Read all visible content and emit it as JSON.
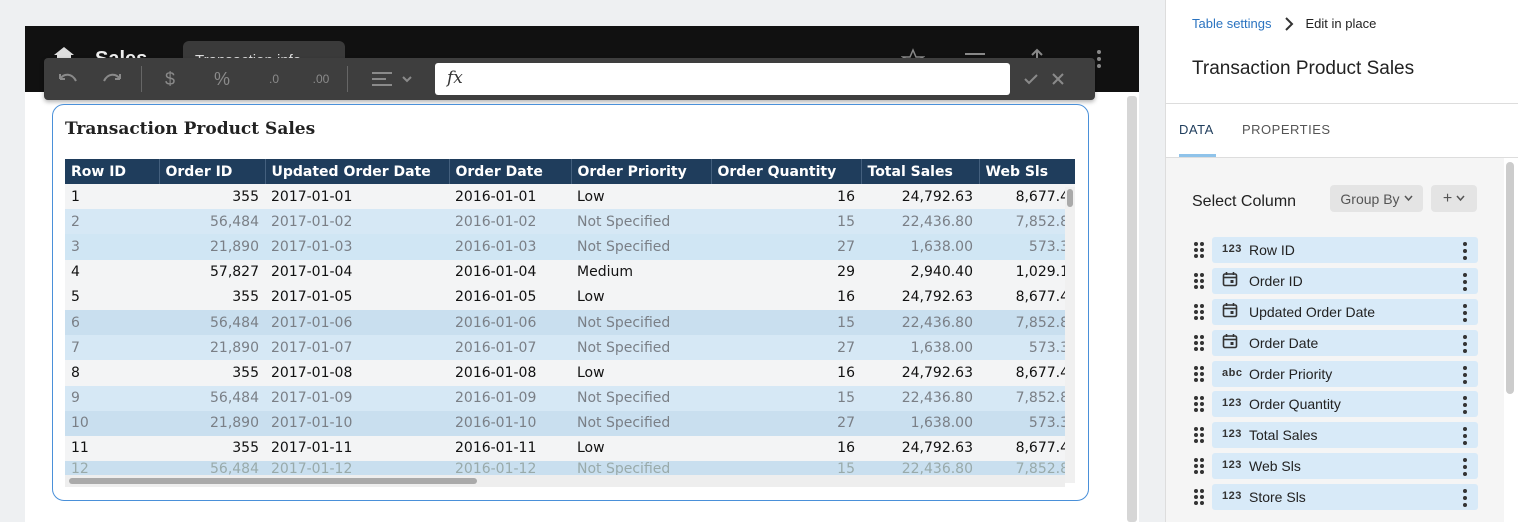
{
  "app": {
    "title": "Sales",
    "page_tab": "Transaction info"
  },
  "toolbar": {
    "undo_icon": "undo-icon",
    "redo_icon": "redo-icon",
    "currency_label": "$",
    "percent_label": "%",
    "decrease_decimals_label": ".0",
    "increase_decimals_label": ".00",
    "align_icon": "align-left-icon",
    "formula_value": "",
    "fx_label": "fx"
  },
  "table": {
    "title": "Transaction Product Sales",
    "columns": [
      "Row ID",
      "Order ID",
      "Updated Order Date",
      "Order Date",
      "Order Priority",
      "Order Quantity",
      "Total Sales",
      "Web Sls"
    ],
    "rows": [
      [
        "1",
        "355",
        "2017-01-01",
        "2016-01-01",
        "Low",
        "16",
        "24,792.63",
        "8,677.4"
      ],
      [
        "2",
        "56,484",
        "2017-01-02",
        "2016-01-02",
        "Not Specified",
        "15",
        "22,436.80",
        "7,852.8"
      ],
      [
        "3",
        "21,890",
        "2017-01-03",
        "2016-01-03",
        "Not Specified",
        "27",
        "1,638.00",
        "573.3"
      ],
      [
        "4",
        "57,827",
        "2017-01-04",
        "2016-01-04",
        "Medium",
        "29",
        "2,940.40",
        "1,029.1"
      ],
      [
        "5",
        "355",
        "2017-01-05",
        "2016-01-05",
        "Low",
        "16",
        "24,792.63",
        "8,677.4"
      ],
      [
        "6",
        "56,484",
        "2017-01-06",
        "2016-01-06",
        "Not Specified",
        "15",
        "22,436.80",
        "7,852.8"
      ],
      [
        "7",
        "21,890",
        "2017-01-07",
        "2016-01-07",
        "Not Specified",
        "27",
        "1,638.00",
        "573.3"
      ],
      [
        "8",
        "355",
        "2017-01-08",
        "2016-01-08",
        "Low",
        "16",
        "24,792.63",
        "8,677.4"
      ],
      [
        "9",
        "56,484",
        "2017-01-09",
        "2016-01-09",
        "Not Specified",
        "15",
        "22,436.80",
        "7,852.8"
      ],
      [
        "10",
        "21,890",
        "2017-01-10",
        "2016-01-10",
        "Not Specified",
        "27",
        "1,638.00",
        "573.3"
      ],
      [
        "11",
        "355",
        "2017-01-11",
        "2016-01-11",
        "Low",
        "16",
        "24,792.63",
        "8,677.4"
      ],
      [
        "12",
        "56,484",
        "2017-01-12",
        "2016-01-12",
        "Not Specified",
        "15",
        "22,436.80",
        "7,852.8"
      ]
    ]
  },
  "panel": {
    "breadcrumb_link": "Table settings",
    "breadcrumb_current": "Edit in place",
    "title": "Transaction Product Sales",
    "tabs": [
      "DATA",
      "PROPERTIES"
    ],
    "active_tab": "DATA",
    "select_column_label": "Select Column",
    "group_by_label": "Group By",
    "add_label": "+",
    "columns": [
      {
        "type": "123",
        "name": "Row ID"
      },
      {
        "type": "calendar",
        "name": "Order ID"
      },
      {
        "type": "calendar",
        "name": "Updated Order Date"
      },
      {
        "type": "calendar",
        "name": "Order Date"
      },
      {
        "type": "abc",
        "name": "Order Priority"
      },
      {
        "type": "123",
        "name": "Order Quantity"
      },
      {
        "type": "123",
        "name": "Total Sales"
      },
      {
        "type": "123",
        "name": "Web Sls"
      },
      {
        "type": "123",
        "name": "Store Sls"
      }
    ]
  }
}
